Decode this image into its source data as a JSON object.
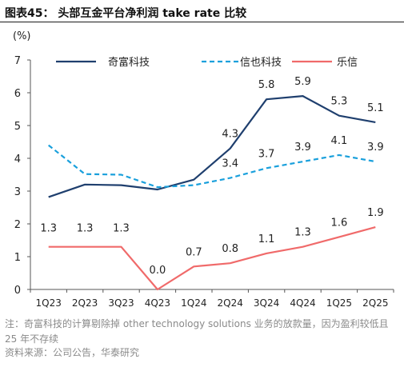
{
  "figure": {
    "title": "图表45： 头部互金平台净利润 take rate 比较"
  },
  "chart_data": {
    "type": "line",
    "ylabel": "(%)",
    "ylim": [
      0,
      7
    ],
    "yticks": [
      0,
      1,
      2,
      3,
      4,
      5,
      6,
      7
    ],
    "categories": [
      "1Q23",
      "2Q23",
      "3Q23",
      "4Q23",
      "1Q24",
      "2Q24",
      "3Q24",
      "4Q24",
      "1Q25",
      "2Q25"
    ],
    "legend_position": "top",
    "grid": false,
    "series": [
      {
        "name": "奇富科技",
        "color": "#1f3f6e",
        "style": "solid",
        "values": [
          2.82,
          3.2,
          3.18,
          3.05,
          3.35,
          4.3,
          5.8,
          5.9,
          5.3,
          5.1
        ],
        "labels": [
          null,
          null,
          null,
          null,
          null,
          "4.3",
          "5.8",
          "5.9",
          "5.3",
          "5.1"
        ]
      },
      {
        "name": "信也科技",
        "color": "#1aa0dc",
        "style": "dashed",
        "values": [
          4.4,
          3.52,
          3.5,
          3.12,
          3.18,
          3.4,
          3.7,
          3.9,
          4.1,
          3.9
        ],
        "labels": [
          null,
          null,
          null,
          null,
          null,
          "3.4",
          "3.7",
          "3.9",
          "4.1",
          "3.9"
        ]
      },
      {
        "name": "乐信",
        "color": "#f06a6a",
        "style": "solid",
        "values": [
          1.3,
          1.3,
          1.3,
          0.0,
          0.7,
          0.8,
          1.1,
          1.3,
          1.6,
          1.9
        ],
        "labels": [
          "1.3",
          "1.3",
          "1.3",
          "0.0",
          "0.7",
          "0.8",
          "1.1",
          "1.3",
          "1.6",
          "1.9"
        ]
      }
    ]
  },
  "notes": {
    "note": "注：奇富科技的计算剔除掉 other technology solutions 业务的放款量，因为盈利较低且 25 年不存续",
    "source": "资料来源：公司公告，华泰研究"
  }
}
